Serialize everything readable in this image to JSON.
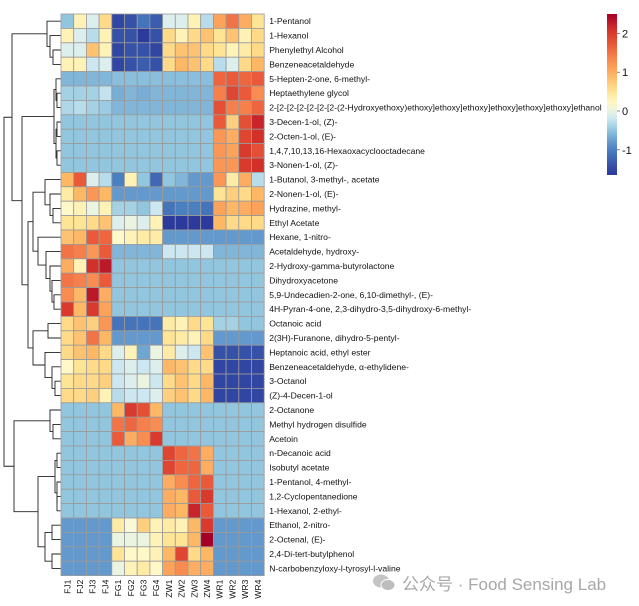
{
  "chart_data": {
    "type": "heatmap",
    "title": "",
    "columns": [
      "FJ1",
      "FJ2",
      "FJ3",
      "FJ4",
      "FG1",
      "FG2",
      "FG3",
      "FG4",
      "ZW1",
      "ZW2",
      "ZW3",
      "ZW4",
      "WR1",
      "WR2",
      "WR3",
      "WR4"
    ],
    "rows": [
      {
        "name": "1-Pentanol",
        "values": [
          -0.5,
          0.3,
          -0.1,
          0.6,
          -1.5,
          -1.4,
          -1.1,
          -1.3,
          -0.1,
          -0.1,
          0.3,
          -0.3,
          1.1,
          1.5,
          1.0,
          0.5
        ]
      },
      {
        "name": "1-Hexanol",
        "values": [
          0.3,
          -0.1,
          -0.3,
          0.3,
          -1.4,
          -1.4,
          -1.6,
          -1.4,
          0.6,
          0.3,
          0.6,
          0.8,
          0.5,
          0.8,
          0.3,
          0.6
        ]
      },
      {
        "name": "Phenylethyl Alcohol",
        "values": [
          -0.1,
          -0.1,
          0.8,
          0.3,
          -1.5,
          -1.4,
          -1.4,
          -1.5,
          0.6,
          0.8,
          0.8,
          0.6,
          0.5,
          0.3,
          0.4,
          0.6
        ]
      },
      {
        "name": "Benzeneacetaldehyde",
        "values": [
          0.3,
          0.3,
          -0.2,
          -0.1,
          -1.5,
          -1.4,
          -1.3,
          -1.4,
          0.6,
          0.9,
          0.8,
          0.6,
          -0.3,
          -0.1,
          0.6,
          0.9
        ]
      },
      {
        "name": "5-Hepten-2-one, 6-methyl-",
        "values": [
          -0.6,
          -0.6,
          -0.6,
          -0.6,
          -0.55,
          -0.55,
          -0.55,
          -0.55,
          -0.55,
          -0.55,
          -0.55,
          -0.55,
          1.6,
          1.7,
          1.6,
          1.7
        ]
      },
      {
        "name": "Heptaethylene glycol",
        "values": [
          -0.4,
          -0.4,
          -0.4,
          -0.25,
          -0.65,
          -0.6,
          -0.65,
          -0.6,
          -0.6,
          -0.6,
          -0.6,
          -0.6,
          1.4,
          1.9,
          1.7,
          1.3
        ]
      },
      {
        "name": "2-[2-[2-[2-[2-[2-[2-(2-Hydroxyethoxy)ethoxy]ethoxy]ethoxy]ethoxy]ethoxy]ethoxy]ethanol",
        "values": [
          -0.35,
          -0.3,
          -0.4,
          -0.45,
          -0.6,
          -0.6,
          -0.6,
          -0.6,
          -0.6,
          -0.6,
          -0.6,
          -0.6,
          1.8,
          1.4,
          1.4,
          1.6
        ]
      },
      {
        "name": "3-Decen-1-ol, (Z)-",
        "values": [
          -0.5,
          -0.5,
          -0.5,
          -0.5,
          -0.5,
          -0.5,
          -0.5,
          -0.5,
          -0.5,
          -0.5,
          -0.5,
          -0.5,
          1.7,
          0.7,
          1.8,
          2.2
        ]
      },
      {
        "name": "2-Octen-1-ol, (E)-",
        "values": [
          -0.5,
          -0.5,
          -0.5,
          -0.5,
          -0.5,
          -0.5,
          -0.5,
          -0.5,
          -0.5,
          -0.5,
          -0.5,
          -0.5,
          1.2,
          1.0,
          1.9,
          2.1
        ]
      },
      {
        "name": "1,4,7,10,13,16-Hexaoxacyclooctadecane",
        "values": [
          -0.5,
          -0.5,
          -0.5,
          -0.5,
          -0.5,
          -0.5,
          -0.5,
          -0.5,
          -0.5,
          -0.5,
          -0.5,
          -0.5,
          1.2,
          1.1,
          2.0,
          1.8
        ]
      },
      {
        "name": "3-Nonen-1-ol, (Z)-",
        "values": [
          -0.5,
          -0.5,
          -0.5,
          -0.5,
          -0.5,
          -0.5,
          -0.5,
          -0.5,
          -0.5,
          -0.5,
          -0.5,
          -0.5,
          1.2,
          1.2,
          2.0,
          2.1
        ]
      },
      {
        "name": "1-Butanol, 3-methyl-, acetate",
        "values": [
          0.9,
          1.7,
          -0.1,
          -0.3,
          -1.0,
          0.3,
          -0.5,
          -1.2,
          -0.5,
          -0.6,
          -0.8,
          -0.8,
          1.2,
          0.4,
          1.0,
          -0.3
        ]
      },
      {
        "name": "2-Nonen-1-ol, (E)-",
        "values": [
          0.4,
          0.9,
          1.2,
          0.9,
          -0.8,
          -0.8,
          -0.8,
          -0.8,
          -0.8,
          -0.8,
          -0.8,
          -0.8,
          0.5,
          0.7,
          0.6,
          0.9
        ]
      },
      {
        "name": "Hydrazine, methyl-",
        "values": [
          0.2,
          0.3,
          0.0,
          0.3,
          -0.4,
          -0.4,
          -0.5,
          -0.2,
          -1.1,
          -1.0,
          -1.0,
          -1.1,
          1.1,
          0.9,
          1.0,
          1.1
        ]
      },
      {
        "name": "Ethyl Acetate",
        "values": [
          0.5,
          0.5,
          0.6,
          0.8,
          -0.1,
          0.0,
          -0.1,
          0.3,
          -1.6,
          -1.6,
          -1.6,
          -1.6,
          0.9,
          0.6,
          0.6,
          0.6
        ]
      },
      {
        "name": "Hexane, 1-nitro-",
        "values": [
          0.8,
          0.9,
          1.7,
          1.6,
          0.2,
          0.3,
          0.4,
          0.4,
          -0.8,
          -0.8,
          -0.8,
          -0.8,
          -0.8,
          -0.8,
          -0.8,
          -0.8
        ]
      },
      {
        "name": "Acetaldehyde, hydroxy-",
        "values": [
          1.5,
          1.4,
          1.2,
          1.7,
          -0.6,
          -0.6,
          -0.6,
          -0.6,
          -0.2,
          -0.2,
          -0.2,
          -0.2,
          -0.6,
          -0.6,
          -0.6,
          -0.6
        ]
      },
      {
        "name": "2-Hydroxy-gamma-butyrolactone",
        "values": [
          1.0,
          0.3,
          2.1,
          2.3,
          -0.5,
          -0.5,
          -0.5,
          -0.5,
          -0.5,
          -0.5,
          -0.5,
          -0.5,
          -0.5,
          -0.5,
          -0.5,
          -0.5
        ]
      },
      {
        "name": "Dihydroxyacetone",
        "values": [
          1.5,
          1.4,
          1.3,
          1.7,
          -0.5,
          -0.5,
          -0.5,
          -0.5,
          -0.5,
          -0.5,
          -0.5,
          -0.5,
          -0.5,
          -0.5,
          -0.5,
          -0.5
        ]
      },
      {
        "name": "5,9-Undecadien-2-one, 6,10-dimethyl-, (E)-",
        "values": [
          1.3,
          0.9,
          2.3,
          1.0,
          -0.5,
          -0.5,
          -0.5,
          -0.5,
          -0.5,
          -0.5,
          -0.5,
          -0.5,
          -0.5,
          -0.5,
          -0.5,
          -0.5
        ]
      },
      {
        "name": "4H-Pyran-4-one, 2,3-dihydro-3,5-dihydroxy-6-methyl-",
        "values": [
          2.0,
          0.9,
          2.0,
          1.1,
          -0.5,
          -0.5,
          -0.5,
          -0.5,
          -0.5,
          -0.5,
          -0.5,
          -0.5,
          -0.5,
          -0.5,
          -0.5,
          -0.5
        ]
      },
      {
        "name": "Octanoic acid",
        "values": [
          0.6,
          0.8,
          0.7,
          1.2,
          -1.1,
          -1.1,
          -1.1,
          -1.1,
          0.4,
          0.3,
          0.6,
          0.5,
          -0.4,
          -0.4,
          -0.5,
          -0.5
        ]
      },
      {
        "name": "2(3H)-Furanone, dihydro-5-pentyl-",
        "values": [
          0.6,
          0.8,
          1.5,
          0.9,
          -0.8,
          -0.8,
          -0.8,
          -0.8,
          0.5,
          0.4,
          0.3,
          0.6,
          -0.8,
          -0.8,
          -0.8,
          -0.8
        ]
      },
      {
        "name": "Heptanoic acid, ethyl ester",
        "values": [
          0.6,
          0.8,
          0.9,
          0.6,
          -0.1,
          0.3,
          -0.7,
          0.0,
          0.4,
          -0.1,
          -0.2,
          0.8,
          -1.4,
          -1.4,
          -1.4,
          -1.4
        ]
      },
      {
        "name": "Benzeneacetaldehyde, α-ethylidene-",
        "values": [
          0.2,
          0.5,
          0.6,
          0.6,
          -0.2,
          -0.1,
          -0.2,
          -0.1,
          0.9,
          0.8,
          0.6,
          0.6,
          -1.5,
          -1.5,
          -1.5,
          -1.5
        ]
      },
      {
        "name": "3-Octanol",
        "values": [
          0.5,
          0.6,
          0.6,
          0.7,
          -0.2,
          -0.1,
          0.0,
          -0.2,
          0.6,
          0.8,
          0.6,
          0.9,
          -1.5,
          -1.5,
          -1.5,
          -1.5
        ]
      },
      {
        "name": "(Z)-4-Decen-1-ol",
        "values": [
          0.6,
          0.6,
          0.7,
          0.3,
          -0.3,
          -0.2,
          -0.2,
          -0.1,
          0.7,
          0.8,
          0.6,
          0.9,
          -1.5,
          -1.5,
          -1.5,
          -1.5
        ]
      },
      {
        "name": "2-Octanone",
        "values": [
          -0.5,
          -0.5,
          -0.5,
          -0.5,
          0.9,
          2.0,
          1.8,
          0.9,
          -0.5,
          -0.5,
          -0.5,
          -0.5,
          -0.5,
          -0.5,
          -0.5,
          -0.5
        ]
      },
      {
        "name": "Methyl hydrogen disulfide",
        "values": [
          -0.5,
          -0.5,
          -0.5,
          -0.5,
          1.5,
          1.6,
          1.4,
          1.3,
          -0.5,
          -0.5,
          -0.5,
          -0.5,
          -0.5,
          -0.5,
          -0.5,
          -0.5
        ]
      },
      {
        "name": "Acetoin",
        "values": [
          -0.5,
          -0.5,
          -0.5,
          -0.5,
          1.7,
          1.0,
          1.3,
          2.0,
          -0.5,
          -0.5,
          -0.5,
          -0.5,
          -0.5,
          -0.5,
          -0.5,
          -0.5
        ]
      },
      {
        "name": "n-Decanoic acid",
        "values": [
          -0.5,
          -0.5,
          -0.5,
          -0.5,
          -0.5,
          -0.5,
          -0.5,
          -0.5,
          1.9,
          1.6,
          1.5,
          1.0,
          -0.5,
          -0.5,
          -0.5,
          -0.5
        ]
      },
      {
        "name": "Isobutyl acetate",
        "values": [
          -0.5,
          -0.5,
          -0.5,
          -0.5,
          -0.5,
          -0.5,
          -0.5,
          -0.5,
          1.9,
          1.6,
          1.6,
          1.0,
          -0.5,
          -0.5,
          -0.5,
          -0.5
        ]
      },
      {
        "name": "1-Pentanol, 4-methyl-",
        "values": [
          -0.5,
          -0.5,
          -0.5,
          -0.5,
          -0.5,
          -0.5,
          -0.5,
          -0.5,
          1.0,
          1.3,
          1.6,
          1.7,
          -0.5,
          -0.5,
          -0.5,
          -0.5
        ]
      },
      {
        "name": "1,2-Cyclopentanedione",
        "values": [
          -0.5,
          -0.5,
          -0.5,
          -0.5,
          -0.5,
          -0.5,
          -0.5,
          -0.5,
          1.0,
          0.9,
          1.7,
          2.0,
          -0.5,
          -0.5,
          -0.5,
          -0.5
        ]
      },
      {
        "name": "1-Hexanol, 2-ethyl-",
        "values": [
          -0.5,
          -0.5,
          -0.5,
          -0.5,
          -0.5,
          -0.5,
          -0.5,
          -0.5,
          1.0,
          0.9,
          2.2,
          1.7,
          -0.5,
          -0.5,
          -0.5,
          -0.5
        ]
      },
      {
        "name": "Ethanol, 2-nitro-",
        "values": [
          -0.8,
          -0.8,
          -0.8,
          -0.8,
          0.4,
          0.1,
          0.7,
          0.3,
          0.4,
          0.3,
          0.9,
          2.0,
          -0.8,
          -0.8,
          -0.8,
          -0.8
        ]
      },
      {
        "name": "2-Octenal, (E)-",
        "values": [
          -0.8,
          -0.8,
          -0.8,
          -0.8,
          0.0,
          0.0,
          0.0,
          0.3,
          0.5,
          0.5,
          0.9,
          2.5,
          -0.8,
          -0.8,
          -0.8,
          -0.8
        ]
      },
      {
        "name": "2,4-Di-tert-butylphenol",
        "values": [
          -0.8,
          -0.8,
          -0.8,
          -0.8,
          0.5,
          0.2,
          0.2,
          0.3,
          0.9,
          1.9,
          0.6,
          0.9,
          -0.8,
          -0.8,
          -0.8,
          -0.8
        ]
      },
      {
        "name": "N-carbobenzyloxy-l-tyrosyl-l-valine",
        "values": [
          -0.8,
          -0.8,
          -0.8,
          -0.8,
          0.0,
          0.3,
          0.4,
          0.2,
          1.1,
          1.3,
          1.0,
          1.0,
          -0.8,
          -0.8,
          -0.8,
          -0.8
        ]
      }
    ],
    "colorbar": {
      "ticks": [
        2,
        1,
        0,
        -1
      ],
      "range": [
        -1.65,
        2.5
      ],
      "low_color": "#2c3a9c",
      "mid_color": "#fffbd0",
      "high_color": "#a50026"
    }
  },
  "watermark": {
    "text": "公众号 · Food Sensing Lab",
    "icon": "wechat-icon"
  }
}
